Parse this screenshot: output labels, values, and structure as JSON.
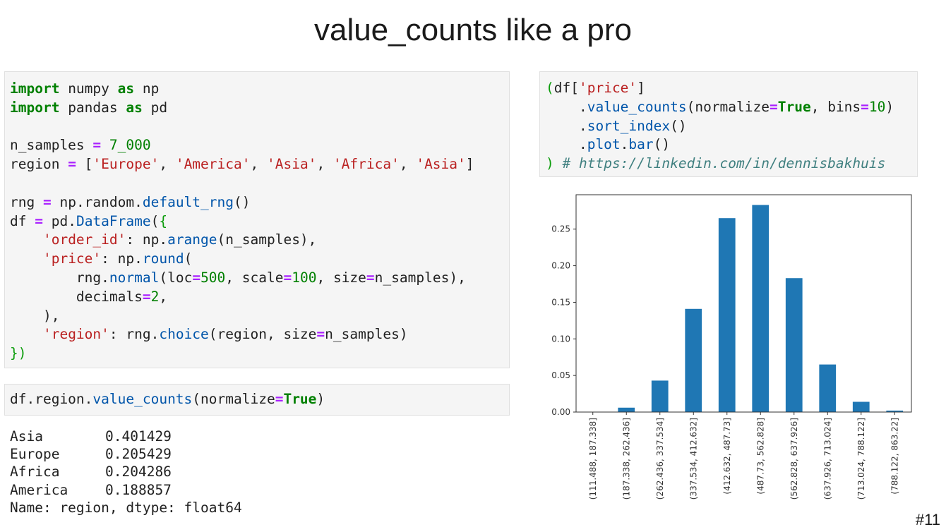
{
  "slide": {
    "title": "value_counts like a pro",
    "number": "#11"
  },
  "cell1": {
    "l1": {
      "kw1": "import",
      "mod": " numpy ",
      "kw2": "as",
      "alias": " np"
    },
    "l2": {
      "kw1": "import",
      "mod": " pandas ",
      "kw2": "as",
      "alias": " pd"
    },
    "l4": {
      "var": "n_samples ",
      "op": "=",
      "num": " 7_000"
    },
    "l5": {
      "var": "region ",
      "op": "=",
      "open": " [",
      "s1": "'Europe'",
      "s2": "'America'",
      "s3": "'Asia'",
      "s4": "'Africa'",
      "s5": "'Asia'",
      "close": "]",
      "sep": ", "
    },
    "l7": {
      "var": "rng ",
      "op": "=",
      "pre": " np.random.",
      "fn": "default_rng",
      "post": "()"
    },
    "l8": {
      "var": "df ",
      "op": "=",
      "pre": " pd.",
      "fn": "DataFrame",
      "open": "(",
      "brace": "{"
    },
    "l9": {
      "indent": "    ",
      "key": "'order_id'",
      "pre": ": np.",
      "fn": "arange",
      "post": "(n_samples),"
    },
    "l10": {
      "indent": "    ",
      "key": "'price'",
      "pre": ": np.",
      "fn": "round",
      "post": "("
    },
    "l11": {
      "indent": "        ",
      "pre": "rng.",
      "fn": "normal",
      "a": "(loc",
      "eq": "=",
      "n1": "500",
      "b": ", scale",
      "n2": "100",
      "c": ", size",
      "d": "n_samples),"
    },
    "l12": {
      "indent": "        ",
      "a": "decimals",
      "eq": "=",
      "n": "2",
      "b": ","
    },
    "l13": {
      "text": "    ),"
    },
    "l14": {
      "indent": "    ",
      "key": "'region'",
      "pre": ": rng.",
      "fn": "choice",
      "a": "(region, size",
      "eq": "=",
      "b": "n_samples)"
    },
    "l15": {
      "brace": "})"
    }
  },
  "cell2": {
    "pre": "df.region.",
    "fn": "value_counts",
    "a": "(normalize",
    "eq": "=",
    "kw": "True",
    "b": ")"
  },
  "output": {
    "rows": [
      {
        "label": "Asia",
        "value": "0.401429"
      },
      {
        "label": "Europe",
        "value": "0.205429"
      },
      {
        "label": "Africa",
        "value": "0.204286"
      },
      {
        "label": "America",
        "value": "0.188857"
      }
    ],
    "footer": "Name: region, dtype: float64"
  },
  "cell3": {
    "l1": {
      "open": "(",
      "a": "df[",
      "s": "'price'",
      "b": "]"
    },
    "l2": {
      "indent": "    .",
      "fn": "value_counts",
      "a": "(normalize",
      "eq": "=",
      "kw": "True",
      "b": ", bins",
      "eq2": "=",
      "n": "10",
      "c": ")"
    },
    "l3": {
      "indent": "    .",
      "fn": "sort_index",
      "post": "()"
    },
    "l4": {
      "indent": "    .",
      "fn1": "plot",
      "dot": ".",
      "fn2": "bar",
      "post": "()"
    },
    "l5": {
      "close": ")",
      "sp": " ",
      "cm": "# https://linkedin.com/in/dennisbakhuis"
    }
  },
  "chart_data": {
    "type": "bar",
    "categories": [
      "(111.488, 187.338]",
      "(187.338, 262.436]",
      "(262.436, 337.534]",
      "(337.534, 412.632]",
      "(412.632, 487.73]",
      "(487.73, 562.828]",
      "(562.828, 637.926]",
      "(637.926, 713.024]",
      "(713.024, 788.122]",
      "(788.122, 863.22]"
    ],
    "values": [
      0.0003,
      0.006,
      0.043,
      0.141,
      0.265,
      0.283,
      0.183,
      0.065,
      0.014,
      0.002
    ],
    "yticks": [
      "0.00",
      "0.05",
      "0.10",
      "0.15",
      "0.20",
      "0.25"
    ],
    "ylim": [
      0,
      0.297
    ],
    "bar_color": "#1f77b4",
    "grid": false,
    "legend": "none"
  }
}
